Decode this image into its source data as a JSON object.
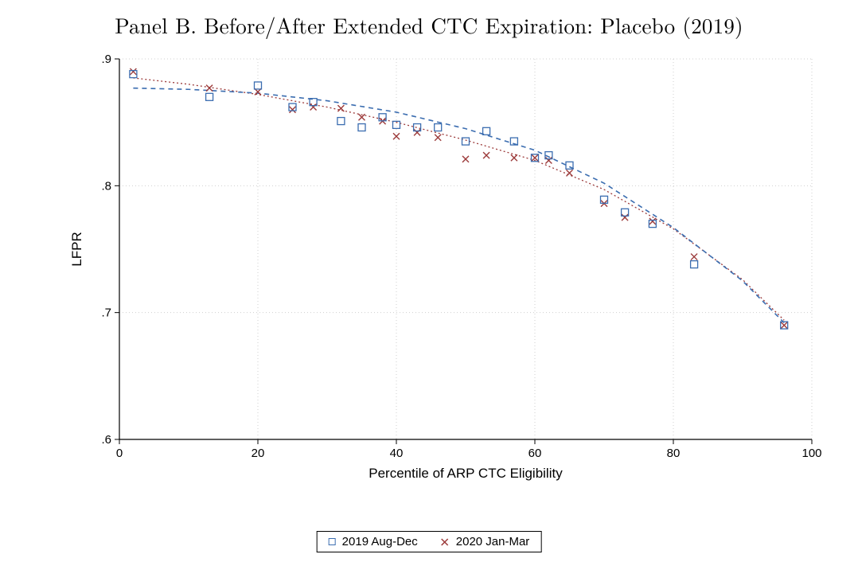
{
  "title": "Panel B. Before/After Extended CTC Expiration: Placebo (2019)",
  "xlabel": "Percentile of ARP CTC Eligibility",
  "ylabel": "LFPR",
  "legend": {
    "series1": "2019 Aug-Dec",
    "series2": "2020 Jan-Mar"
  },
  "chart": {
    "type": "scatter-with-fit",
    "xlim": [
      0,
      100
    ],
    "ylim": [
      0.6,
      0.9
    ],
    "xticks": [
      0,
      20,
      40,
      60,
      80,
      100
    ],
    "yticks": [
      0.6,
      0.7,
      0.8,
      0.9
    ],
    "ytick_labels": [
      ".6",
      ".7",
      ".8",
      ".9"
    ],
    "background_color": "#ffffff",
    "grid_color": "#cfcfcf",
    "axis_color": "#000000",
    "series1": {
      "color": "#3b6db0",
      "marker": "open-square",
      "marker_size": 9,
      "line_dash": "6,5",
      "line_width": 1.6,
      "points": [
        {
          "x": 2,
          "y": 0.888
        },
        {
          "x": 13,
          "y": 0.87
        },
        {
          "x": 20,
          "y": 0.879
        },
        {
          "x": 25,
          "y": 0.862
        },
        {
          "x": 28,
          "y": 0.866
        },
        {
          "x": 32,
          "y": 0.851
        },
        {
          "x": 35,
          "y": 0.846
        },
        {
          "x": 38,
          "y": 0.854
        },
        {
          "x": 40,
          "y": 0.848
        },
        {
          "x": 43,
          "y": 0.846
        },
        {
          "x": 46,
          "y": 0.846
        },
        {
          "x": 50,
          "y": 0.835
        },
        {
          "x": 53,
          "y": 0.843
        },
        {
          "x": 57,
          "y": 0.835
        },
        {
          "x": 60,
          "y": 0.822
        },
        {
          "x": 62,
          "y": 0.824
        },
        {
          "x": 65,
          "y": 0.816
        },
        {
          "x": 70,
          "y": 0.789
        },
        {
          "x": 73,
          "y": 0.779
        },
        {
          "x": 77,
          "y": 0.77
        },
        {
          "x": 83,
          "y": 0.738
        },
        {
          "x": 96,
          "y": 0.69
        }
      ],
      "fit_curve": [
        {
          "x": 2,
          "y": 0.877
        },
        {
          "x": 10,
          "y": 0.876
        },
        {
          "x": 20,
          "y": 0.873
        },
        {
          "x": 30,
          "y": 0.867
        },
        {
          "x": 40,
          "y": 0.858
        },
        {
          "x": 50,
          "y": 0.845
        },
        {
          "x": 60,
          "y": 0.828
        },
        {
          "x": 70,
          "y": 0.802
        },
        {
          "x": 80,
          "y": 0.767
        },
        {
          "x": 90,
          "y": 0.725
        },
        {
          "x": 96,
          "y": 0.692
        }
      ]
    },
    "series2": {
      "color": "#9c3b3b",
      "marker": "x",
      "marker_size": 8,
      "line_dash": "2,3",
      "line_width": 1.3,
      "points": [
        {
          "x": 2,
          "y": 0.89
        },
        {
          "x": 13,
          "y": 0.877
        },
        {
          "x": 20,
          "y": 0.874
        },
        {
          "x": 25,
          "y": 0.86
        },
        {
          "x": 28,
          "y": 0.862
        },
        {
          "x": 32,
          "y": 0.861
        },
        {
          "x": 35,
          "y": 0.854
        },
        {
          "x": 38,
          "y": 0.851
        },
        {
          "x": 40,
          "y": 0.839
        },
        {
          "x": 43,
          "y": 0.842
        },
        {
          "x": 46,
          "y": 0.838
        },
        {
          "x": 50,
          "y": 0.821
        },
        {
          "x": 53,
          "y": 0.824
        },
        {
          "x": 57,
          "y": 0.822
        },
        {
          "x": 60,
          "y": 0.822
        },
        {
          "x": 62,
          "y": 0.82
        },
        {
          "x": 65,
          "y": 0.81
        },
        {
          "x": 70,
          "y": 0.786
        },
        {
          "x": 73,
          "y": 0.775
        },
        {
          "x": 77,
          "y": 0.772
        },
        {
          "x": 83,
          "y": 0.744
        },
        {
          "x": 96,
          "y": 0.69
        }
      ],
      "fit_curve": [
        {
          "x": 2,
          "y": 0.885
        },
        {
          "x": 10,
          "y": 0.88
        },
        {
          "x": 20,
          "y": 0.872
        },
        {
          "x": 30,
          "y": 0.862
        },
        {
          "x": 40,
          "y": 0.85
        },
        {
          "x": 50,
          "y": 0.836
        },
        {
          "x": 60,
          "y": 0.82
        },
        {
          "x": 70,
          "y": 0.797
        },
        {
          "x": 80,
          "y": 0.766
        },
        {
          "x": 90,
          "y": 0.726
        },
        {
          "x": 96,
          "y": 0.694
        }
      ]
    },
    "label_fontsize": 17,
    "tick_fontsize": 15,
    "title_fontsize": 27
  }
}
